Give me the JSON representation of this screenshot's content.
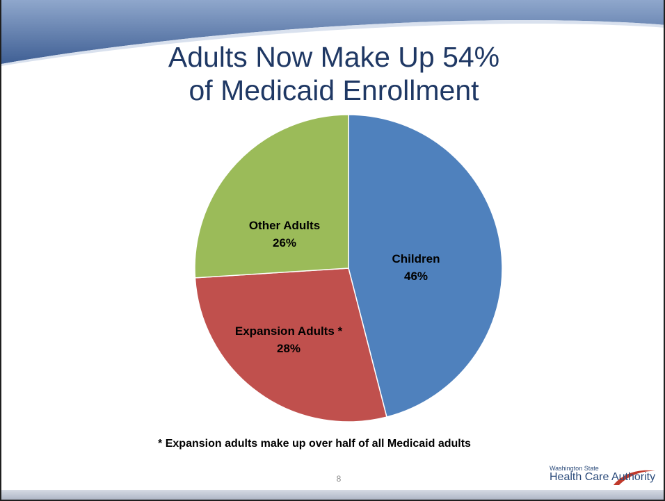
{
  "title": {
    "line1": "Adults Now Make Up 54%",
    "line2": "of Medicaid Enrollment"
  },
  "chart_data": {
    "type": "pie",
    "slices": [
      {
        "label": "Children",
        "value": 46,
        "value_label": "46%",
        "color": "#4f81bd"
      },
      {
        "label": "Expansion Adults *",
        "value": 28,
        "value_label": "28%",
        "color": "#c0504d"
      },
      {
        "label": "Other Adults",
        "value": 26,
        "value_label": "26%",
        "color": "#9bbb59"
      }
    ],
    "start": "12 o'clock",
    "direction": "clockwise",
    "legend": "none",
    "data_labels": "inside"
  },
  "footnote": "* Expansion adults make up over half of all Medicaid adults",
  "page_number": "8",
  "logo": {
    "small": "Washington State",
    "main_prefix": "Health Care ",
    "main_letter": "A",
    "main_suffix": "uthority",
    "color": "#2a4a7a"
  },
  "colors": {
    "title": "#1f3864",
    "header_band": "#5b7fb0"
  }
}
